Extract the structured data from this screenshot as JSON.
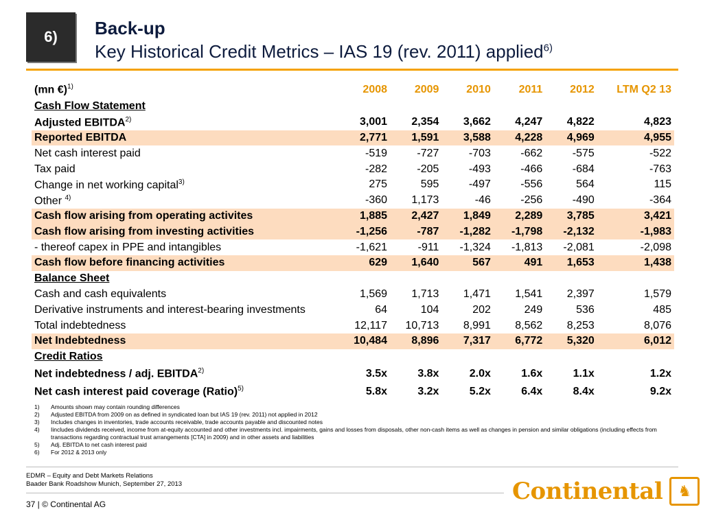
{
  "badge": "6)",
  "title": {
    "line1": "Back-up",
    "line2": "Key Historical Credit Metrics – IAS 19 (rev. 2011) applied",
    "line2_sup": "6)"
  },
  "table": {
    "unit_label": "(mn €)",
    "unit_sup": "1)",
    "years": [
      "2008",
      "2009",
      "2010",
      "2011",
      "2012",
      "LTM Q2 13"
    ],
    "rows": [
      {
        "label": "Cash Flow Statement ",
        "section": true
      },
      {
        "label": "Adjusted EBITDA",
        "sup": "2)",
        "bold": true,
        "values": [
          "3,001",
          "2,354",
          "3,662",
          "4,247",
          "4,822",
          "4,823"
        ]
      },
      {
        "label": "Reported EBITDA",
        "bold": true,
        "highlight": true,
        "values": [
          "2,771",
          "1,591",
          "3,588",
          "4,228",
          "4,969",
          "4,955"
        ]
      },
      {
        "label": "Net cash interest paid",
        "values": [
          "-519",
          "-727",
          "-703",
          "-662",
          "-575",
          "-522"
        ]
      },
      {
        "label": "Tax paid",
        "values": [
          "-282",
          "-205",
          "-493",
          "-466",
          "-684",
          "-763"
        ]
      },
      {
        "label": "Change in net working capital",
        "sup": "3)",
        "values": [
          "275",
          "595",
          "-497",
          "-556",
          "564",
          "115"
        ]
      },
      {
        "label": "Other ",
        "sup": "4)",
        "values": [
          "-360",
          "1,173",
          "-46",
          "-256",
          "-490",
          "-364"
        ]
      },
      {
        "label": "Cash flow arising from operating activites",
        "bold": true,
        "highlight": true,
        "values": [
          "1,885",
          "2,427",
          "1,849",
          "2,289",
          "3,785",
          "3,421"
        ]
      },
      {
        "label": "Cash flow arising from investing activities",
        "bold": true,
        "highlight": true,
        "values": [
          "-1,256",
          "-787",
          "-1,282",
          "-1,798",
          "-2,132",
          "-1,983"
        ]
      },
      {
        "label": "- thereof capex in PPE and intangibles",
        "indent": true,
        "values": [
          "-1,621",
          "-911",
          "-1,324",
          "-1,813",
          "-2,081",
          "-2,098"
        ]
      },
      {
        "label": "Cash flow before financing activities",
        "bold": true,
        "highlight": true,
        "values": [
          "629",
          "1,640",
          "567",
          "491",
          "1,653",
          "1,438"
        ]
      },
      {
        "label": "Balance Sheet",
        "section": true
      },
      {
        "label": "Cash and cash equivalents",
        "values": [
          "1,569",
          "1,713",
          "1,471",
          "1,541",
          "2,397",
          "1,579"
        ]
      },
      {
        "label": "Derivative instruments and interest-bearing investments",
        "values": [
          "64",
          "104",
          "202",
          "249",
          "536",
          "485"
        ]
      },
      {
        "label": "Total indebtedness",
        "values": [
          "12,117",
          "10,713",
          "8,991",
          "8,562",
          "8,253",
          "8,076"
        ]
      },
      {
        "label": "Net Indebtedness",
        "bold": true,
        "highlight": true,
        "values": [
          "10,484",
          "8,896",
          "7,317",
          "6,772",
          "5,320",
          "6,012"
        ]
      },
      {
        "label": "Credit Ratios",
        "section": true
      },
      {
        "label": "Net indebtedness / adj. EBITDA",
        "sup": "2)",
        "bold": true,
        "tall": true,
        "values": [
          "3.5x",
          "3.8x",
          "2.0x",
          "1.6x",
          "1.1x",
          "1.2x"
        ]
      },
      {
        "label": "Net cash interest paid coverage (Ratio)",
        "sup": "5)",
        "bold": true,
        "tall": true,
        "values": [
          "5.8x",
          "3.2x",
          "5.2x",
          "6.4x",
          "8.4x",
          "9.2x"
        ]
      }
    ]
  },
  "footnotes": [
    {
      "n": "1)",
      "text": "Amounts shown may contain rounding differences"
    },
    {
      "n": "2)",
      "text": "Adjusted EBITDA from 2009 on as defined in syndicated loan but IAS 19 (rev. 2011) not applied in 2012"
    },
    {
      "n": "3)",
      "text": "Includes changes in inventories, trade accounts receivable, trade accounts payable and discounted notes"
    },
    {
      "n": "4)",
      "text": "Iincludes dividends received, income from at-equity accounted and other investments incl. impairments, gains and losses from disposals, other non-cash items as well as changes in pension and similar obligations (including effects from transactions regarding contractual trust arrangements [CTA] in 2009) and in other assets and liabilities"
    },
    {
      "n": "5)",
      "text": "Adj. EBITDA to net cash interest paid"
    },
    {
      "n": "6)",
      "text": "For 2012 & 2013 only"
    }
  ],
  "footer": {
    "line1": "EDMR – Equity and Debt Markets Relations",
    "line2": "Baader Bank Roadshow Munich, September 27, 2013",
    "page_note": "37 | © Continental AG",
    "logo_text": "Continental",
    "logo_icon": "horse-icon"
  },
  "colors": {
    "accent": "#f5a100",
    "year_header": "#e69500",
    "highlight_row": "#fddcbf",
    "badge_bg": "#2b2b2b",
    "title": "#0d1b3d"
  }
}
